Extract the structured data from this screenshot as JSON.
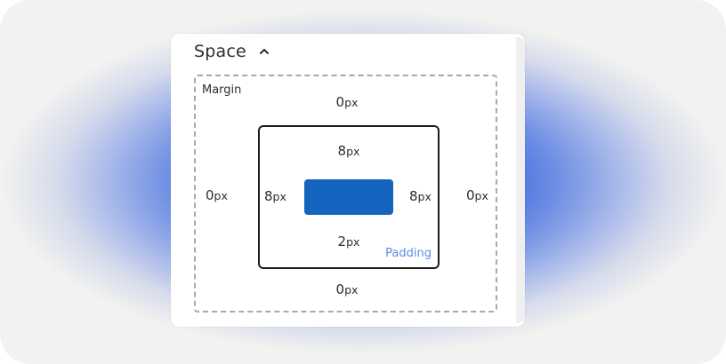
{
  "section": {
    "title": "Space",
    "toggle_icon": "chevron-up-icon"
  },
  "margin": {
    "label": "Margin",
    "top": {
      "value": "0",
      "unit": "px"
    },
    "right": {
      "value": "0",
      "unit": "px"
    },
    "bottom": {
      "value": "0",
      "unit": "px"
    },
    "left": {
      "value": "0",
      "unit": "px"
    }
  },
  "padding": {
    "label": "Padding",
    "top": {
      "value": "8",
      "unit": "px"
    },
    "right": {
      "value": "8",
      "unit": "px"
    },
    "bottom": {
      "value": "2",
      "unit": "px"
    },
    "left": {
      "value": "8",
      "unit": "px"
    }
  },
  "colors": {
    "content_fill": "#1565c0",
    "padding_label": "#5b8be0",
    "background_glow": "#2556d8"
  }
}
